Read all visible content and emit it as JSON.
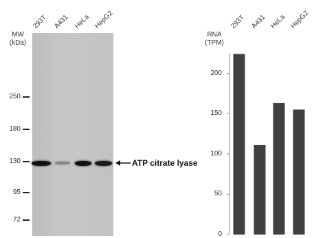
{
  "blot": {
    "mw_header": [
      "MW",
      "(kDa)"
    ],
    "lanes": [
      "293T",
      "A431",
      "HeLa",
      "HepG2"
    ],
    "markers": [
      {
        "label": "250",
        "kda": 250
      },
      {
        "label": "180",
        "kda": 180
      },
      {
        "label": "130",
        "kda": 130
      },
      {
        "label": "95",
        "kda": 95
      },
      {
        "label": "72",
        "kda": 72
      }
    ],
    "band_label": "ATP citrate lyase",
    "band_intensity": [
      1.0,
      0.25,
      1.0,
      0.95
    ],
    "colors": {
      "membrane": "#c2c2c2",
      "band": "#111111"
    }
  },
  "chart_data": {
    "type": "bar",
    "ylabel": [
      "RNA",
      "(TPM)"
    ],
    "categories": [
      "293T",
      "A431",
      "HeLa",
      "HepG2"
    ],
    "values": [
      224,
      111,
      163,
      155
    ],
    "ylim": [
      0,
      250
    ],
    "yticks": [
      0,
      50,
      100,
      150,
      200
    ],
    "grid": false,
    "bar_color": "#404040"
  }
}
